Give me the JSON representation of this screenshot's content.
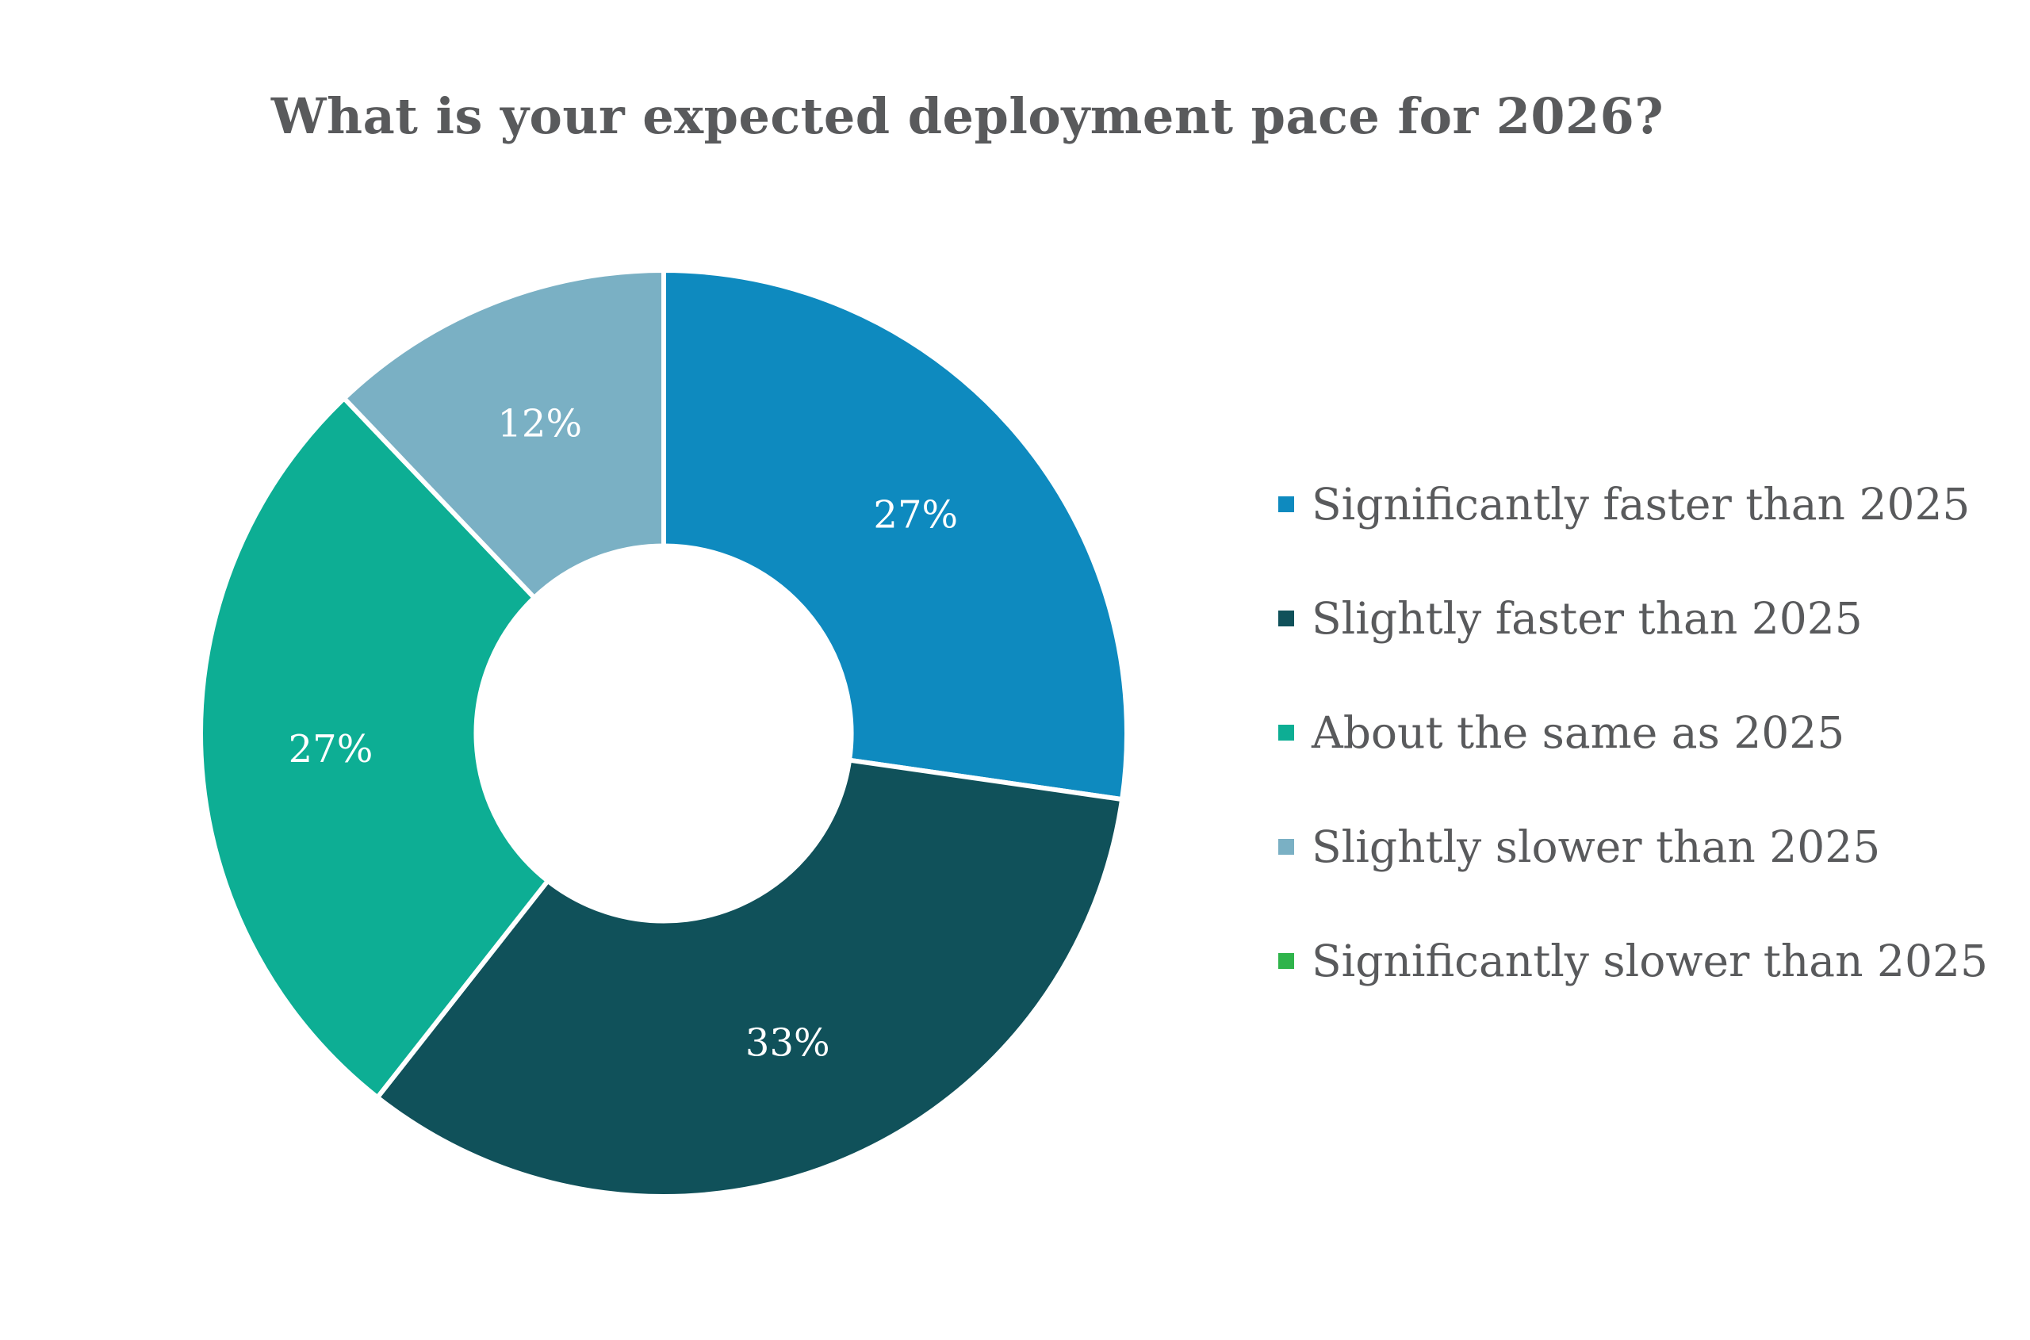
{
  "chart_data": {
    "type": "pie",
    "subtype": "donut",
    "title": "What is your expected deployment pace for 2026?",
    "unit": "%",
    "segments": [
      {
        "label": "Significantly faster than 2025",
        "value": 27,
        "display": "27%",
        "color": "#0E8ABF"
      },
      {
        "label": "Slightly faster than 2025",
        "value": 33,
        "display": "33%",
        "color": "#10515A"
      },
      {
        "label": "About the same as 2025",
        "value": 27,
        "display": "27%",
        "color": "#0DAE94"
      },
      {
        "label": "Slightly slower than 2025",
        "value": 12,
        "display": "12%",
        "color": "#7AB0C4"
      },
      {
        "label": "Significantly slower than 2025",
        "value": 0,
        "display": "",
        "color": "#2FB44B"
      }
    ],
    "legend_position": "right",
    "start_angle_deg": 0,
    "direction": "clockwise",
    "inner_radius_ratio": 0.405,
    "slice_border_color": "#ffffff",
    "label_text_color": "#ffffff",
    "title_text_color": "#595a5c",
    "legend_text_color": "#595a5c"
  }
}
